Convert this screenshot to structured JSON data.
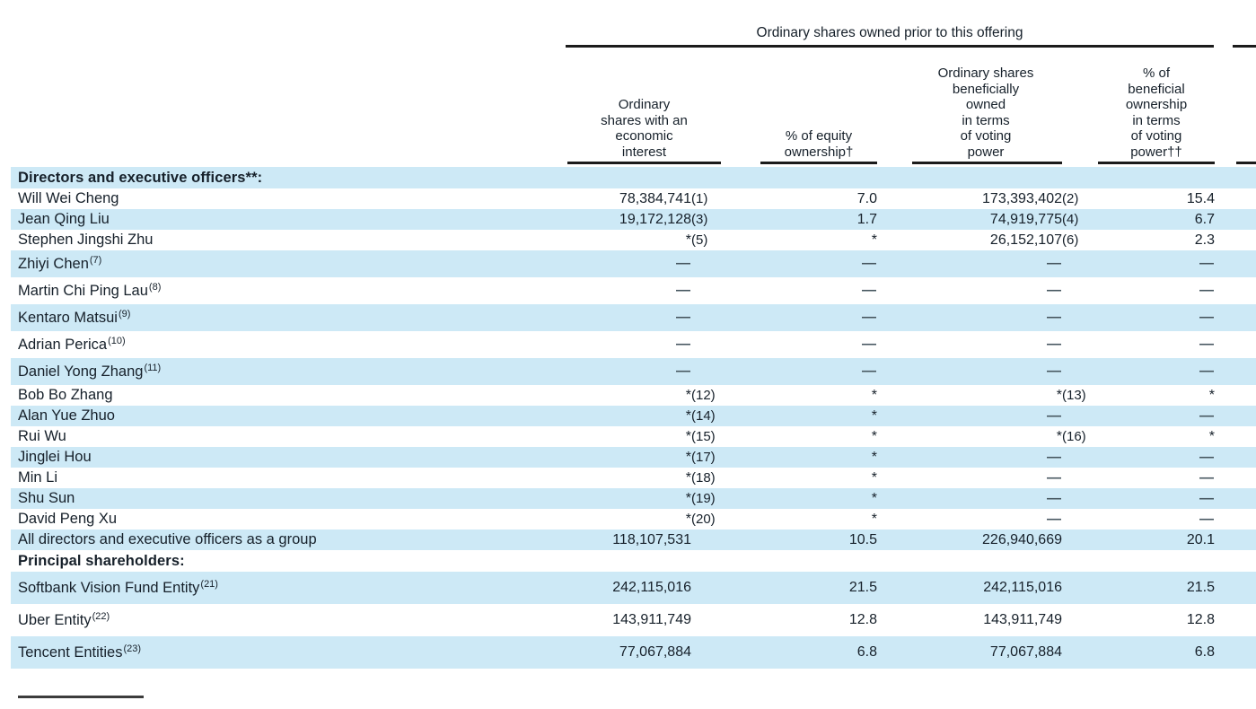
{
  "colors": {
    "stripe": "#cde9f6",
    "rule": "#1b1b1b",
    "text": "#16202a",
    "background": "#ffffff"
  },
  "table": {
    "spanner_header": "Ordinary shares owned prior to this offering",
    "column_headers": [
      "Ordinary\nshares with an\neconomic\ninterest",
      "% of equity\nownership†",
      "Ordinary shares\nbeneficially\nowned\nin terms\nof voting\npower",
      "% of\nbeneficial\nownership\nin terms\nof voting\npower††"
    ],
    "rows": [
      {
        "name": "Directors and executive officers**:",
        "sup": "",
        "c1": "",
        "c1ref": "",
        "c2": "",
        "c3": "",
        "c3ref": "",
        "c4": "",
        "shaded": true,
        "section": true,
        "size": "s"
      },
      {
        "name": "Will Wei Cheng",
        "sup": "",
        "c1": "78,384,741",
        "c1ref": "(1)",
        "c2": "7.0",
        "c3": "173,393,402",
        "c3ref": "(2)",
        "c4": "15.4",
        "shaded": false,
        "section": false,
        "size": "s"
      },
      {
        "name": "Jean Qing Liu",
        "sup": "",
        "c1": "19,172,128",
        "c1ref": "(3)",
        "c2": "1.7",
        "c3": "74,919,775",
        "c3ref": "(4)",
        "c4": "6.7",
        "shaded": true,
        "section": false,
        "size": "s"
      },
      {
        "name": "Stephen Jingshi Zhu",
        "sup": "",
        "c1": "*",
        "c1ref": "(5)",
        "c2": "*",
        "c3": "26,152,107",
        "c3ref": "(6)",
        "c4": "2.3",
        "shaded": false,
        "section": false,
        "size": "s"
      },
      {
        "name": "Zhiyi Chen",
        "sup": "(7)",
        "c1": "—",
        "c1ref": "",
        "c2": "—",
        "c3": "—",
        "c3ref": "",
        "c4": "—",
        "shaded": true,
        "section": false,
        "size": "m"
      },
      {
        "name": "Martin Chi Ping Lau",
        "sup": "(8)",
        "c1": "—",
        "c1ref": "",
        "c2": "—",
        "c3": "—",
        "c3ref": "",
        "c4": "—",
        "shaded": false,
        "section": false,
        "size": "m"
      },
      {
        "name": "Kentaro Matsui",
        "sup": "(9)",
        "c1": "—",
        "c1ref": "",
        "c2": "—",
        "c3": "—",
        "c3ref": "",
        "c4": "—",
        "shaded": true,
        "section": false,
        "size": "m"
      },
      {
        "name": "Adrian Perica",
        "sup": "(10)",
        "c1": "—",
        "c1ref": "",
        "c2": "—",
        "c3": "—",
        "c3ref": "",
        "c4": "—",
        "shaded": false,
        "section": false,
        "size": "m"
      },
      {
        "name": "Daniel Yong Zhang",
        "sup": "(11)",
        "c1": "—",
        "c1ref": "",
        "c2": "—",
        "c3": "—",
        "c3ref": "",
        "c4": "—",
        "shaded": true,
        "section": false,
        "size": "m"
      },
      {
        "name": "Bob Bo Zhang",
        "sup": "",
        "c1": "*",
        "c1ref": "(12)",
        "c2": "*",
        "c3": "*",
        "c3ref": "(13)",
        "c4": "*",
        "shaded": false,
        "section": false,
        "size": "s"
      },
      {
        "name": "Alan Yue Zhuo",
        "sup": "",
        "c1": "*",
        "c1ref": "(14)",
        "c2": "*",
        "c3": "—",
        "c3ref": "",
        "c4": "—",
        "shaded": true,
        "section": false,
        "size": "s"
      },
      {
        "name": "Rui Wu",
        "sup": "",
        "c1": "*",
        "c1ref": "(15)",
        "c2": "*",
        "c3": "*",
        "c3ref": "(16)",
        "c4": "*",
        "shaded": false,
        "section": false,
        "size": "s"
      },
      {
        "name": "Jinglei Hou",
        "sup": "",
        "c1": "*",
        "c1ref": "(17)",
        "c2": "*",
        "c3": "—",
        "c3ref": "",
        "c4": "—",
        "shaded": true,
        "section": false,
        "size": "s"
      },
      {
        "name": "Min Li",
        "sup": "",
        "c1": "*",
        "c1ref": "(18)",
        "c2": "*",
        "c3": "—",
        "c3ref": "",
        "c4": "—",
        "shaded": false,
        "section": false,
        "size": "s"
      },
      {
        "name": "Shu Sun",
        "sup": "",
        "c1": "*",
        "c1ref": "(19)",
        "c2": "*",
        "c3": "—",
        "c3ref": "",
        "c4": "—",
        "shaded": true,
        "section": false,
        "size": "s"
      },
      {
        "name": "David Peng Xu",
        "sup": "",
        "c1": "*",
        "c1ref": "(20)",
        "c2": "*",
        "c3": "—",
        "c3ref": "",
        "c4": "—",
        "shaded": false,
        "section": false,
        "size": "s"
      },
      {
        "name": "All directors and executive officers as a group",
        "sup": "",
        "c1": "118,107,531",
        "c1ref": "",
        "c2": "10.5",
        "c3": "226,940,669",
        "c3ref": "",
        "c4": "20.1",
        "shaded": true,
        "section": false,
        "size": "s"
      },
      {
        "name": "Principal shareholders:",
        "sup": "",
        "c1": "",
        "c1ref": "",
        "c2": "",
        "c3": "",
        "c3ref": "",
        "c4": "",
        "shaded": false,
        "section": true,
        "size": "s"
      },
      {
        "name": "Softbank Vision Fund Entity",
        "sup": "(21)",
        "c1": "242,115,016",
        "c1ref": "",
        "c2": "21.5",
        "c3": "242,115,016",
        "c3ref": "",
        "c4": "21.5",
        "shaded": true,
        "section": false,
        "size": "l"
      },
      {
        "name": "Uber Entity",
        "sup": "(22)",
        "c1": "143,911,749",
        "c1ref": "",
        "c2": "12.8",
        "c3": "143,911,749",
        "c3ref": "",
        "c4": "12.8",
        "shaded": false,
        "section": false,
        "size": "l"
      },
      {
        "name": "Tencent Entities",
        "sup": "(23)",
        "c1": "77,067,884",
        "c1ref": "",
        "c2": "6.8",
        "c3": "77,067,884",
        "c3ref": "",
        "c4": "6.8",
        "shaded": true,
        "section": false,
        "size": "l"
      }
    ]
  }
}
